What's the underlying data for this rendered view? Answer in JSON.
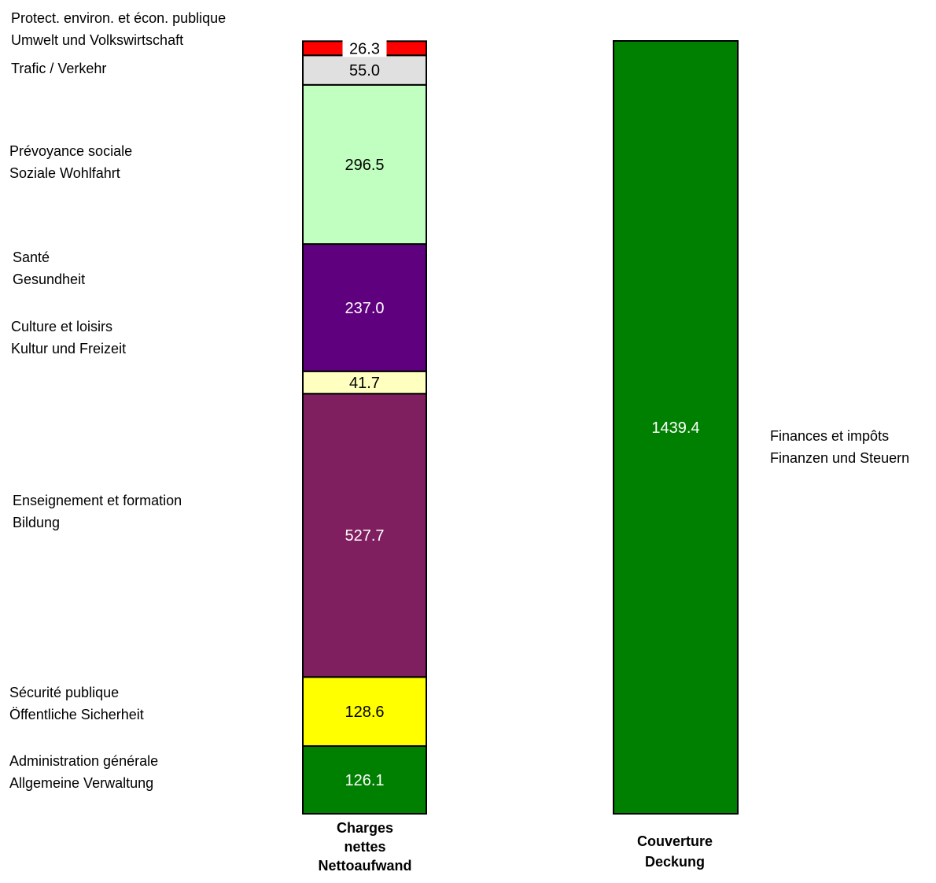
{
  "chart_data": {
    "type": "bar",
    "stacked": true,
    "categories": [
      [
        "Charges",
        "nettes",
        "Nettoaufwand"
      ],
      [
        "Couverture",
        "Deckung"
      ]
    ],
    "series": [
      {
        "bar": 0,
        "label_lines": [
          "Administration générale",
          "Allgemeine Verwaltung"
        ],
        "value": 126.1,
        "value_label": "126.1",
        "color": "#008000",
        "text_color": "#ffffff"
      },
      {
        "bar": 0,
        "label_lines": [
          "Sécurité publique",
          "Öffentliche Sicherheit"
        ],
        "value": 128.6,
        "value_label": "128.6",
        "color": "#ffff00",
        "text_color": "#000000"
      },
      {
        "bar": 0,
        "label_lines": [
          "Enseignement et formation",
          "Bildung"
        ],
        "value": 527.7,
        "value_label": "527.7",
        "color": "#7f1f5f",
        "text_color": "#ffffff"
      },
      {
        "bar": 0,
        "label_lines": [
          "Culture et loisirs",
          "Kultur und Freizeit"
        ],
        "value": 41.7,
        "value_label": "41.7",
        "color": "#ffffc0",
        "text_color": "#000000"
      },
      {
        "bar": 0,
        "label_lines": [
          "Santé",
          "Gesundheit"
        ],
        "value": 237.0,
        "value_label": "237.0",
        "color": "#5f007f",
        "text_color": "#ffffff"
      },
      {
        "bar": 0,
        "label_lines": [
          "Prévoyance sociale",
          "Soziale Wohlfahrt"
        ],
        "value": 296.5,
        "value_label": "296.5",
        "color": "#c0ffc0",
        "text_color": "#000000"
      },
      {
        "bar": 0,
        "label_lines": [
          "Trafic / Verkehr"
        ],
        "value": 55.0,
        "value_label": "55.0",
        "color": "#e0e0e0",
        "text_color": "#000000"
      },
      {
        "bar": 0,
        "label_lines": [
          "Protect. environ. et écon. publique",
          "Umwelt und Volkswirtschaft"
        ],
        "value": 26.3,
        "value_label": "26.3",
        "color": "#ff0000",
        "text_color": "#000000"
      },
      {
        "bar": 1,
        "label_lines": [
          "Finances et impôts",
          "Finanzen und Steuern"
        ],
        "value": 1439.4,
        "value_label": "1439.4",
        "color": "#008000",
        "text_color": "#ffffff"
      }
    ],
    "ylim": [
      0,
      1439.4
    ],
    "grid": false,
    "legend": "none"
  }
}
